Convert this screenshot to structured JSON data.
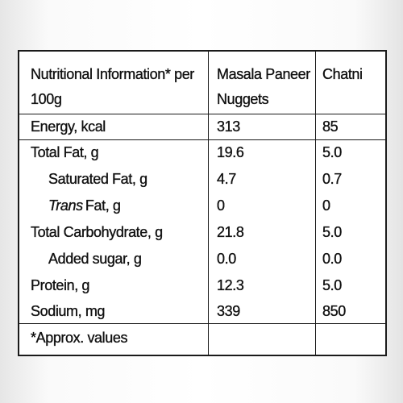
{
  "table": {
    "header": [
      "Nutritional Information* per 100g",
      "Masala Paneer Nuggets",
      "Chatni"
    ],
    "rows": [
      [
        "Energy, kcal",
        "313",
        "85"
      ],
      [
        "Total Fat, g",
        "19.6",
        "5.0"
      ],
      [
        "Saturated Fat, g",
        "4.7",
        "0.7"
      ],
      [
        {
          "italic": "Trans",
          "text": "Fat, g"
        },
        "0",
        "0"
      ],
      [
        "Total Carbohydrate, g",
        "21.8",
        "5.0"
      ],
      [
        "Added sugar, g",
        "0.0",
        "0.0"
      ],
      [
        "Protein, g",
        "12.3",
        "5.0"
      ],
      [
        "Sodium, mg",
        "339",
        "850"
      ]
    ],
    "footer": "*Approx. values"
  }
}
